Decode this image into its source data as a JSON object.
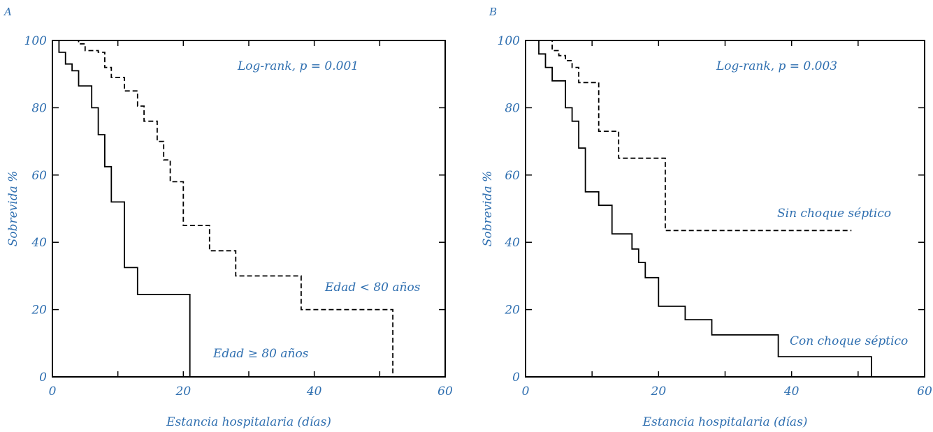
{
  "colors": {
    "text": "#2f6fb0",
    "line": "#000000",
    "frame": "#000000"
  },
  "chart_data": [
    {
      "type": "line",
      "panel_label": "A",
      "xlabel": "Estancia hospitalaria (días)",
      "ylabel": "Sobrevida %",
      "xlim": [
        0,
        60
      ],
      "ylim": [
        0,
        100
      ],
      "xticks": [
        0,
        20,
        40,
        60
      ],
      "yticks": [
        0,
        20,
        40,
        60,
        80,
        100
      ],
      "grid": false,
      "annotation": "Log-rank, p = 0.001",
      "series": [
        {
          "name": "Edad ≥ 80 años",
          "style": "solid",
          "x": [
            0,
            1,
            1,
            2,
            2,
            3,
            3,
            4,
            4,
            6,
            6,
            7,
            7,
            8,
            8,
            9,
            9,
            11,
            11,
            13,
            13,
            21,
            21
          ],
          "y": [
            100,
            100,
            96.5,
            96.5,
            93,
            93,
            91,
            91,
            86.5,
            86.5,
            80,
            80,
            72,
            72,
            62.5,
            62.5,
            52,
            52,
            32.5,
            32.5,
            24.5,
            24.5,
            0
          ]
        },
        {
          "name": "Edad < 80 años",
          "style": "dashed",
          "x": [
            0,
            4,
            4,
            5,
            5,
            7,
            7,
            8,
            8,
            9,
            9,
            11,
            11,
            13,
            13,
            14,
            14,
            16,
            16,
            17,
            17,
            18,
            18,
            20,
            20,
            24,
            24,
            28,
            28,
            38,
            38,
            52,
            52
          ],
          "y": [
            100,
            100,
            99,
            99,
            97,
            97,
            96.5,
            96.5,
            92,
            92,
            89,
            89,
            85,
            85,
            80.5,
            80.5,
            76,
            76,
            70,
            70,
            64.5,
            64.5,
            58,
            58,
            45,
            45,
            37.5,
            37.5,
            30,
            30,
            20,
            20,
            0
          ]
        }
      ],
      "series_labels": [
        "Edad < 80 años",
        "Edad ≥ 80 años"
      ]
    },
    {
      "type": "line",
      "panel_label": "B",
      "xlabel": "Estancia hospitalaria (días)",
      "ylabel": "Sobrevida %",
      "xlim": [
        0,
        60
      ],
      "ylim": [
        0,
        100
      ],
      "xticks": [
        0,
        20,
        40,
        60
      ],
      "yticks": [
        0,
        20,
        40,
        60,
        80,
        100
      ],
      "grid": false,
      "annotation": "Log-rank, p = 0.003",
      "series": [
        {
          "name": "Sin choque séptico",
          "style": "dashed",
          "x": [
            0,
            4,
            4,
            5,
            5,
            6,
            6,
            7,
            7,
            8,
            8,
            11,
            11,
            14,
            14,
            21,
            21,
            49
          ],
          "y": [
            100,
            100,
            97,
            97,
            95.5,
            95.5,
            94,
            94,
            92,
            92,
            87.5,
            87.5,
            73,
            73,
            65,
            65,
            43.5,
            43.5
          ]
        },
        {
          "name": "Con choque séptico",
          "style": "solid",
          "x": [
            0,
            2,
            2,
            3,
            3,
            4,
            4,
            6,
            6,
            7,
            7,
            8,
            8,
            9,
            9,
            11,
            11,
            13,
            13,
            16,
            16,
            17,
            17,
            18,
            18,
            20,
            20,
            24,
            24,
            28,
            28,
            38,
            38,
            52,
            52
          ],
          "y": [
            100,
            100,
            96,
            96,
            92,
            92,
            88,
            88,
            80,
            80,
            76,
            76,
            68,
            68,
            55,
            55,
            51,
            51,
            42.5,
            42.5,
            38,
            38,
            34,
            34,
            29.5,
            29.5,
            21,
            21,
            17,
            17,
            12.5,
            12.5,
            6,
            6,
            0
          ]
        }
      ],
      "series_labels": [
        "Sin choque séptico",
        "Con choque séptico"
      ]
    }
  ]
}
